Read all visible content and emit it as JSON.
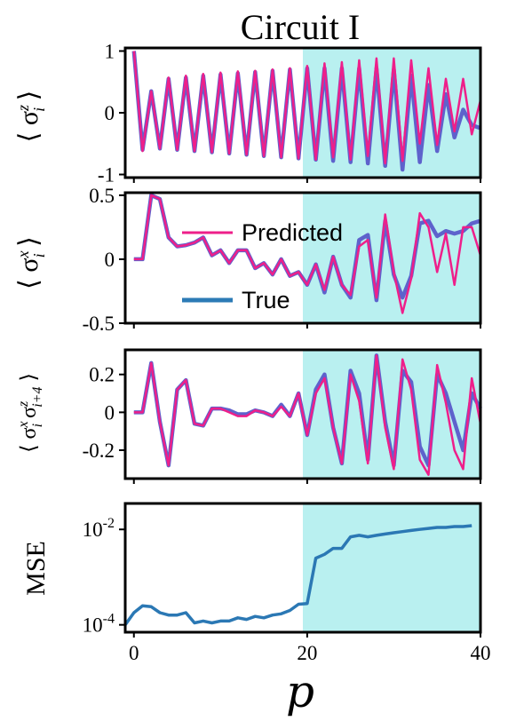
{
  "title": "Circuit I",
  "xlabel": "p",
  "colors": {
    "predicted": "#ee1f8a",
    "true_line": "#5e62cc",
    "true_legend": "#2c7bb6",
    "mse": "#2b78b4",
    "shade": "#b9f0f0"
  },
  "legend": {
    "predicted": "Predicted",
    "true": "True"
  },
  "chart_data": [
    {
      "type": "line",
      "panel": "sigma_z",
      "ylabel_symbol": "σ",
      "ylabel_sup": "z",
      "ylabel_sub": "i",
      "xlim": [
        -1,
        40
      ],
      "ylim": [
        -1.05,
        1.05
      ],
      "shade_range": [
        19.5,
        40
      ],
      "yticks": [
        {
          "v": 1,
          "label": "1"
        },
        {
          "v": 0,
          "label": "0"
        },
        {
          "v": -1,
          "label": "-1"
        }
      ],
      "xticks": [
        0,
        20,
        40
      ],
      "x": [
        0,
        1,
        2,
        3,
        4,
        5,
        6,
        7,
        8,
        9,
        10,
        11,
        12,
        13,
        14,
        15,
        16,
        17,
        18,
        19,
        20,
        21,
        22,
        23,
        24,
        25,
        26,
        27,
        28,
        29,
        30,
        31,
        32,
        33,
        34,
        35,
        36,
        37,
        38,
        39,
        40
      ],
      "series": [
        {
          "name": "True",
          "values": [
            1,
            -0.6,
            0.35,
            -0.58,
            0.55,
            -0.6,
            0.57,
            -0.62,
            0.6,
            -0.64,
            0.62,
            -0.66,
            0.64,
            -0.68,
            0.66,
            -0.7,
            0.68,
            -0.72,
            0.7,
            -0.74,
            0.72,
            -0.76,
            0.72,
            -0.78,
            0.72,
            -0.8,
            0.72,
            -0.82,
            0.72,
            -0.86,
            0.7,
            -0.92,
            0.6,
            -0.8,
            0.45,
            -0.62,
            0.3,
            -0.4,
            0.05,
            -0.2,
            -0.25
          ]
        },
        {
          "name": "Predicted",
          "values": [
            1,
            -0.62,
            0.35,
            -0.58,
            0.57,
            -0.6,
            0.6,
            -0.62,
            0.63,
            -0.64,
            0.65,
            -0.66,
            0.67,
            -0.68,
            0.68,
            -0.7,
            0.7,
            -0.72,
            0.72,
            -0.74,
            0.76,
            -0.76,
            0.8,
            -0.72,
            0.82,
            -0.76,
            0.85,
            -0.7,
            0.88,
            -0.82,
            0.88,
            -0.78,
            0.85,
            -0.5,
            0.72,
            -0.52,
            0.55,
            -0.3,
            0.55,
            -0.35,
            0.2
          ]
        }
      ]
    },
    {
      "type": "line",
      "panel": "sigma_x",
      "ylabel_symbol": "σ",
      "ylabel_sup": "x",
      "ylabel_sub": "i",
      "xlim": [
        -1,
        40
      ],
      "ylim": [
        -0.5,
        0.52
      ],
      "shade_range": [
        19.5,
        40
      ],
      "yticks": [
        {
          "v": 0.5,
          "label": "0.5"
        },
        {
          "v": 0,
          "label": "0"
        },
        {
          "v": -0.5,
          "label": "-0.5"
        }
      ],
      "xticks": [
        0,
        20,
        40
      ],
      "x": [
        0,
        1,
        2,
        3,
        4,
        5,
        6,
        7,
        8,
        9,
        10,
        11,
        12,
        13,
        14,
        15,
        16,
        17,
        18,
        19,
        20,
        21,
        22,
        23,
        24,
        25,
        26,
        27,
        28,
        29,
        30,
        31,
        32,
        33,
        34,
        35,
        36,
        37,
        38,
        39,
        40
      ],
      "series": [
        {
          "name": "True",
          "values": [
            0,
            0,
            0.5,
            0.47,
            0.17,
            0.1,
            0.11,
            0.13,
            0.17,
            0.03,
            0.07,
            -0.03,
            0.07,
            0.07,
            -0.07,
            -0.03,
            -0.12,
            0,
            -0.13,
            -0.1,
            -0.2,
            -0.04,
            -0.26,
            0.02,
            -0.2,
            -0.3,
            0.15,
            0.19,
            -0.32,
            0.3,
            -0.12,
            -0.3,
            -0.13,
            0.28,
            0.3,
            0.18,
            0.22,
            0.2,
            0.22,
            0.28,
            0.3
          ]
        },
        {
          "name": "Predicted",
          "values": [
            0,
            0,
            0.5,
            0.47,
            0.17,
            0.1,
            0.11,
            0.13,
            0.17,
            0.03,
            0.07,
            -0.03,
            0.07,
            0.07,
            -0.07,
            -0.03,
            -0.12,
            0,
            -0.13,
            -0.1,
            -0.2,
            -0.04,
            -0.24,
            0.02,
            -0.2,
            -0.28,
            0.1,
            0.15,
            -0.3,
            0.35,
            -0.1,
            -0.42,
            -0.15,
            0.36,
            0.25,
            -0.1,
            0.2,
            -0.2,
            0.25,
            0.25,
            0.03
          ]
        }
      ],
      "legend_position": "upper-center"
    },
    {
      "type": "line",
      "panel": "correlator",
      "ylabel_symbol": "σσ",
      "ylabel_text": "⟨σ^x_i σ^z_{i+4}⟩",
      "xlim": [
        -1,
        40
      ],
      "ylim": [
        -0.35,
        0.33
      ],
      "shade_range": [
        19.5,
        40
      ],
      "yticks": [
        {
          "v": 0.2,
          "label": "0.2"
        },
        {
          "v": 0,
          "label": "0"
        },
        {
          "v": -0.2,
          "label": "-0.2"
        }
      ],
      "xticks": [
        0,
        20,
        40
      ],
      "x": [
        0,
        1,
        2,
        3,
        4,
        5,
        6,
        7,
        8,
        9,
        10,
        11,
        12,
        13,
        14,
        15,
        16,
        17,
        18,
        19,
        20,
        21,
        22,
        23,
        24,
        25,
        26,
        27,
        28,
        29,
        30,
        31,
        32,
        33,
        34,
        35,
        36,
        37,
        38,
        39,
        40
      ],
      "series": [
        {
          "name": "True",
          "values": [
            0,
            0,
            0.26,
            -0.05,
            -0.28,
            0.12,
            0.17,
            -0.06,
            -0.07,
            0.02,
            0.02,
            0.01,
            -0.01,
            -0.01,
            0.01,
            0,
            -0.02,
            0.04,
            -0.02,
            0.1,
            -0.12,
            0.12,
            0.2,
            -0.08,
            -0.27,
            0.22,
            0.1,
            -0.25,
            0.3,
            -0.05,
            -0.28,
            0.22,
            0.16,
            -0.18,
            -0.28,
            0.2,
            0.1,
            -0.05,
            -0.2,
            0.1,
            0.02
          ]
        },
        {
          "name": "Predicted",
          "values": [
            0,
            0,
            0.26,
            -0.05,
            -0.28,
            0.12,
            0.17,
            -0.06,
            -0.07,
            0.02,
            0.02,
            0.0,
            -0.02,
            -0.02,
            0.01,
            0,
            -0.02,
            0.03,
            -0.02,
            0.1,
            -0.12,
            0.1,
            0.18,
            -0.08,
            -0.27,
            0.2,
            0.06,
            -0.27,
            0.3,
            -0.08,
            -0.3,
            0.28,
            0.12,
            -0.25,
            -0.33,
            0.25,
            0.05,
            -0.2,
            -0.3,
            0.18,
            -0.06
          ]
        }
      ]
    },
    {
      "type": "line",
      "panel": "mse",
      "ylabel": "MSE",
      "yscale": "log",
      "xlim": [
        -1,
        40
      ],
      "ylim": [
        7e-05,
        0.035
      ],
      "shade_range": [
        19.5,
        40
      ],
      "yticks": [
        {
          "v": 0.01,
          "label": "10",
          "exp": "-2"
        },
        {
          "v": 0.0001,
          "label": "10",
          "exp": "-4"
        }
      ],
      "xticks": [
        0,
        20,
        40
      ],
      "xticklabels": [
        "0",
        "20",
        "40"
      ],
      "x": [
        -1,
        0,
        1,
        2,
        3,
        4,
        5,
        6,
        7,
        8,
        9,
        10,
        11,
        12,
        13,
        14,
        15,
        16,
        17,
        18,
        19,
        20,
        21,
        22,
        23,
        24,
        25,
        26,
        27,
        28,
        29,
        30,
        31,
        32,
        33,
        34,
        35,
        36,
        37,
        38,
        39
      ],
      "series": [
        {
          "name": "MSE",
          "values": [
            0.0001,
            0.00018,
            0.00025,
            0.00024,
            0.00018,
            0.00016,
            0.00016,
            0.00018,
            0.00011,
            0.00012,
            0.00011,
            0.00012,
            0.00012,
            0.00014,
            0.00013,
            0.00015,
            0.00014,
            0.00016,
            0.00017,
            0.0002,
            0.00027,
            0.00028,
            0.0025,
            0.003,
            0.004,
            0.004,
            0.007,
            0.0075,
            0.007,
            0.0075,
            0.008,
            0.0085,
            0.009,
            0.0095,
            0.01,
            0.0105,
            0.011,
            0.011,
            0.0115,
            0.0115,
            0.012
          ]
        }
      ]
    }
  ]
}
